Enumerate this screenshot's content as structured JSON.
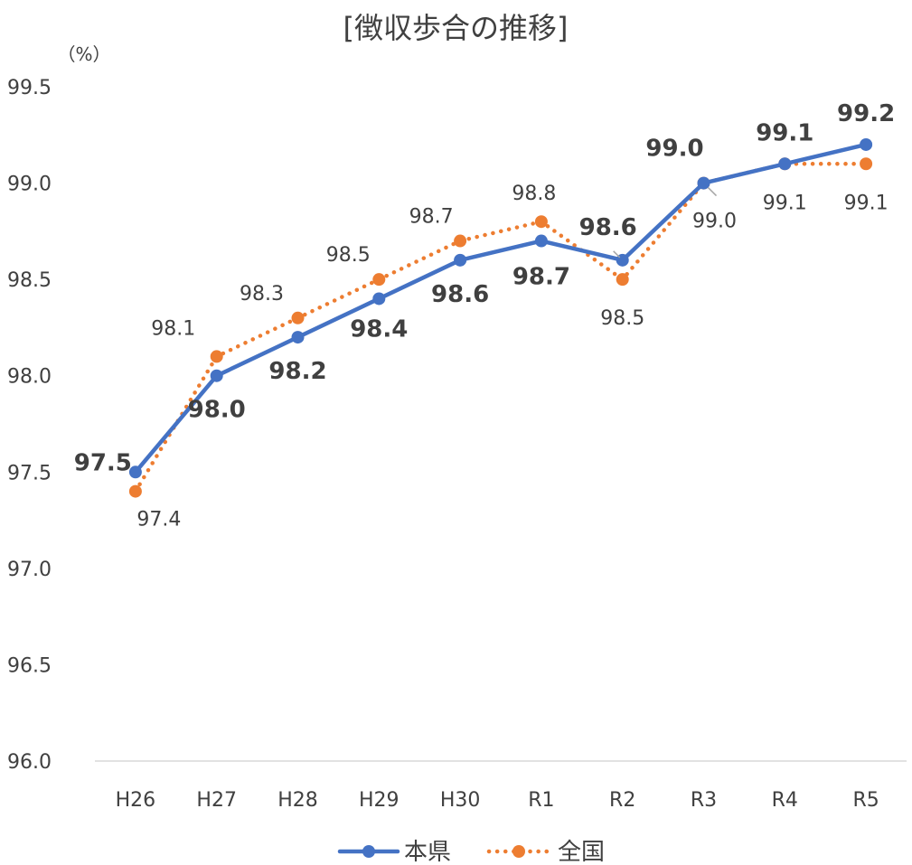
{
  "chart_data": {
    "type": "line",
    "title": "[徴収歩合の推移]",
    "unit_label": "（%）",
    "categories": [
      "H26",
      "H27",
      "H28",
      "H29",
      "H30",
      "R1",
      "R2",
      "R3",
      "R4",
      "R5"
    ],
    "ylim": [
      96.0,
      99.5
    ],
    "yticks": [
      "96.0",
      "96.5",
      "97.0",
      "97.5",
      "98.0",
      "98.5",
      "99.0",
      "99.5"
    ],
    "grid": false,
    "legend_position": "bottom",
    "series": [
      {
        "name": "本県",
        "color": "#4472C4",
        "style": "solid",
        "values": [
          97.5,
          98.0,
          98.2,
          98.4,
          98.6,
          98.7,
          98.6,
          99.0,
          99.1,
          99.2
        ],
        "labels": [
          "97.5",
          "98.0",
          "98.2",
          "98.4",
          "98.6",
          "98.7",
          "98.6",
          "99.0",
          "99.1",
          "99.2"
        ]
      },
      {
        "name": "全国",
        "color": "#ED7D31",
        "style": "dotted",
        "values": [
          97.4,
          98.1,
          98.3,
          98.5,
          98.7,
          98.8,
          98.5,
          99.0,
          99.1,
          99.1
        ],
        "labels": [
          "97.4",
          "98.1",
          "98.3",
          "98.5",
          "98.7",
          "98.8",
          "98.5",
          "99.0",
          "99.1",
          "99.1"
        ]
      }
    ]
  }
}
